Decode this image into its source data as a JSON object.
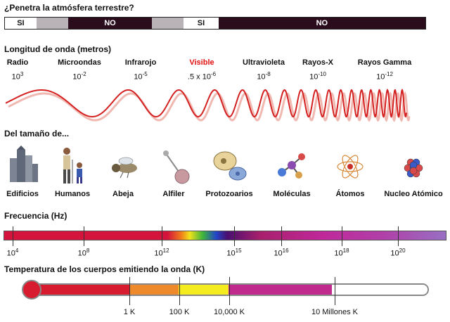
{
  "penetration": {
    "title": "¿Penetra la atmósfera terrestre?",
    "segments": [
      {
        "label": "SI",
        "kind": "yes",
        "share": 0.075
      },
      {
        "label": "",
        "kind": "gray",
        "share": 0.075
      },
      {
        "label": "NO",
        "kind": "no",
        "share": 0.2
      },
      {
        "label": "",
        "kind": "gray",
        "share": 0.075
      },
      {
        "label": "SI",
        "kind": "yes",
        "share": 0.083
      },
      {
        "label": "NO",
        "kind": "no",
        "share": 0.492
      }
    ]
  },
  "wavelength": {
    "title": "Longitud de onda (metros)",
    "bands": [
      {
        "name": "Radio",
        "base": "10",
        "exp": "3",
        "highlight": false
      },
      {
        "name": "Microondas",
        "base": "10",
        "exp": "-2",
        "highlight": false
      },
      {
        "name": "Infrarojo",
        "base": "10",
        "exp": "-5",
        "highlight": false
      },
      {
        "name": "Visible",
        "base": ".5 x 10",
        "exp": "-6",
        "highlight": true
      },
      {
        "name": "Ultravioleta",
        "base": "10",
        "exp": "-8",
        "highlight": false
      },
      {
        "name": "Rayos-X",
        "base": "10",
        "exp": "-10",
        "highlight": false
      },
      {
        "name": "Rayos Gamma",
        "base": "10",
        "exp": "-12",
        "highlight": false
      }
    ],
    "wave_color": "#d42020",
    "visible_color": "#e01010"
  },
  "size": {
    "title": "Del tamaño de...",
    "objects": [
      {
        "label": "Edificios",
        "icon": "buildings-icon"
      },
      {
        "label": "Humanos",
        "icon": "humans-icon"
      },
      {
        "label": "Abeja",
        "icon": "bee-icon"
      },
      {
        "label": "Alfiler",
        "icon": "pin-icon"
      },
      {
        "label": "Protozoarios",
        "icon": "protozoa-icon"
      },
      {
        "label": "Moléculas",
        "icon": "molecule-icon"
      },
      {
        "label": "Átomos",
        "icon": "atom-icon"
      },
      {
        "label": "Nucleo Atómico",
        "icon": "atomic-nucleus-icon"
      }
    ]
  },
  "frequency": {
    "title": "Frecuencia (Hz)",
    "ticks": [
      {
        "base": "10",
        "exp": "4"
      },
      {
        "base": "10",
        "exp": "8"
      },
      {
        "base": "10",
        "exp": "12"
      },
      {
        "base": "10",
        "exp": "15"
      },
      {
        "base": "10",
        "exp": "16"
      },
      {
        "base": "10",
        "exp": "18"
      },
      {
        "base": "10",
        "exp": "20"
      }
    ]
  },
  "temperature": {
    "title": "Temperatura de los cuerpos emitiendo la onda (K)",
    "labels": [
      "1 K",
      "100 K",
      "10,000 K",
      "10 Millones K"
    ],
    "colors": {
      "bulb": "#d81c30",
      "red": "#d81c30",
      "orange": "#ee8a2c",
      "yellow": "#f4ec1e",
      "magenta": "#c02a8c",
      "empty": "#ffffff"
    }
  }
}
